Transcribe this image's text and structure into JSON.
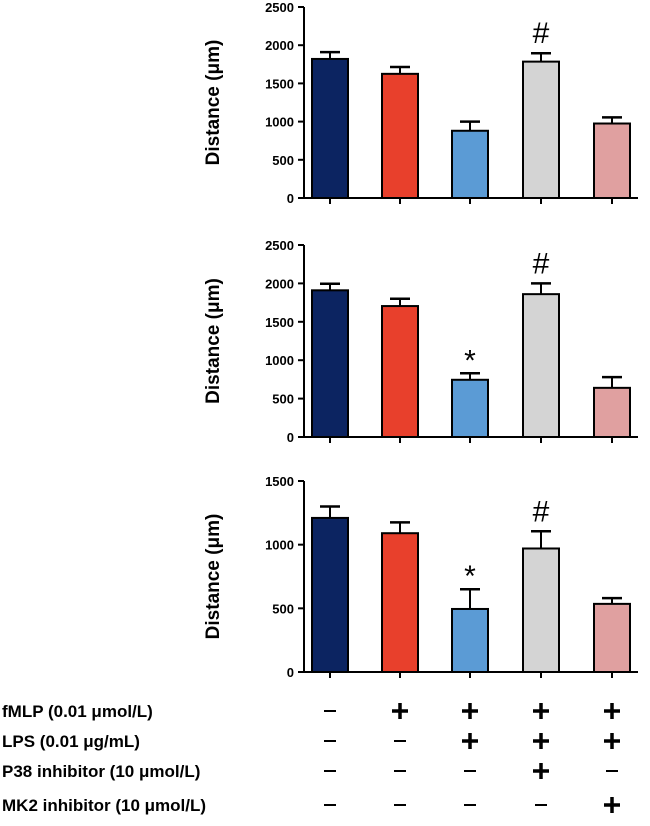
{
  "chart_data": [
    {
      "type": "bar",
      "ylabel": "Distance (μm)",
      "ylim": [
        0,
        2500
      ],
      "yticks": [
        "0",
        "500",
        "1000",
        "1500",
        "2000",
        "2500"
      ],
      "bar_colors": [
        "#0c2461",
        "#e8402c",
        "#5b9bd5",
        "#d4d4d4",
        "#e0a0a0"
      ],
      "values": [
        1820,
        1625,
        880,
        1785,
        975
      ],
      "errors": [
        90,
        90,
        120,
        110,
        80
      ],
      "annotations": [
        "",
        "",
        "",
        "#",
        ""
      ]
    },
    {
      "type": "bar",
      "ylabel": "Distance (μm)",
      "ylim": [
        0,
        2500
      ],
      "yticks": [
        "0",
        "500",
        "1000",
        "1500",
        "2000",
        "2500"
      ],
      "bar_colors": [
        "#0c2461",
        "#e8402c",
        "#5b9bd5",
        "#d4d4d4",
        "#e0a0a0"
      ],
      "values": [
        1910,
        1705,
        745,
        1860,
        640
      ],
      "errors": [
        85,
        95,
        85,
        140,
        140
      ],
      "annotations": [
        "",
        "",
        "*",
        "#",
        ""
      ]
    },
    {
      "type": "bar",
      "ylabel": "Distance (μm)",
      "ylim": [
        0,
        1500
      ],
      "yticks": [
        "0",
        "500",
        "1000",
        "1500"
      ],
      "bar_colors": [
        "#0c2461",
        "#e8402c",
        "#5b9bd5",
        "#d4d4d4",
        "#e0a0a0"
      ],
      "values": [
        1210,
        1090,
        495,
        970,
        535
      ],
      "errors": [
        90,
        85,
        155,
        135,
        45
      ],
      "annotations": [
        "",
        "",
        "*",
        "#",
        ""
      ]
    }
  ],
  "conditions": [
    {
      "label": "fMLP (0.01 μmol/L)",
      "symbols": [
        "–",
        "+",
        "+",
        "+",
        "+"
      ]
    },
    {
      "label": "LPS (0.01 μg/mL)",
      "symbols": [
        "–",
        "–",
        "+",
        "+",
        "+"
      ]
    },
    {
      "label": "P38 inhibitor (10 μmol/L)",
      "symbols": [
        "–",
        "–",
        "–",
        "+",
        "–"
      ]
    },
    {
      "label": "MK2 inhibitor (10 μmol/L)",
      "symbols": [
        "–",
        "–",
        "–",
        "–",
        "+"
      ]
    }
  ]
}
